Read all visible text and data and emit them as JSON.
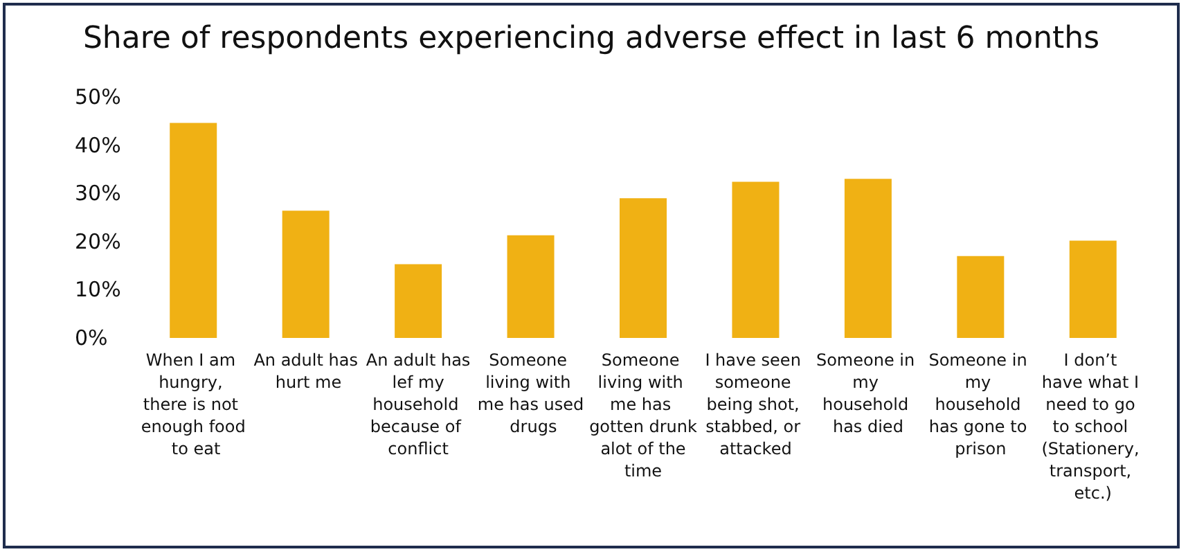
{
  "chart_data": {
    "type": "bar",
    "title": "Share of respondents experiencing adverse effect in last 6 months",
    "categories": [
      "When I am hungry, there is not enough food to eat",
      "An adult has hurt me",
      "An adult has lef my household because of conflict",
      "Someone living with me has used drugs",
      "Someone living with me has gotten drunk alot of the time",
      "I have seen someone being shot, stabbed, or attacked",
      "Someone in my household has died",
      "Someone in my household has gone to prison",
      "I don’t have what I need to go to school (Stationery, transport, etc.)"
    ],
    "values": [
      44.6,
      26.4,
      15.3,
      21.3,
      29,
      32.4,
      33,
      17,
      20.2
    ],
    "color": "#f0b114",
    "ylim": [
      0,
      50
    ],
    "yticks": [
      {
        "value": 0,
        "label": "0%"
      },
      {
        "value": 10,
        "label": "10%"
      },
      {
        "value": 20,
        "label": "20%"
      },
      {
        "value": 30,
        "label": "30%"
      },
      {
        "value": 40,
        "label": "40%"
      },
      {
        "value": 50,
        "label": "50%"
      }
    ],
    "grid": false
  }
}
